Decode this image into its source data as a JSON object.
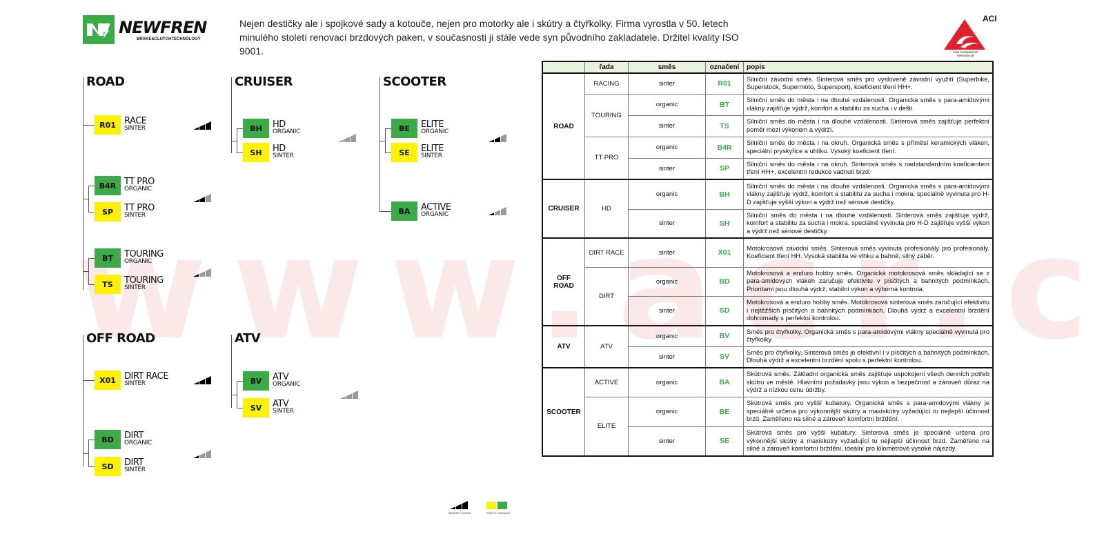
{
  "brand": {
    "name": "NEWFREN",
    "tagline": "BRAKE&CLUTCHTECHNOLOGY",
    "green": "#3daa48"
  },
  "intro": "Nejen destičky ale i spojkové sady a kotouče, nejen pro motorky ale i skútry a čtyřkolky. Firma vyrostla v 50. letech minulého století renovací brzdových paken, v současnosti ji stále vede syn původního zakladatele. Držitel kvality ISO 9001.",
  "aci_logo": {
    "name": "ACI",
    "subtitle": "Auto Components International",
    "color": "#e3202a"
  },
  "watermark": "www.acr.cz",
  "colors": {
    "sinter": "#fff200",
    "organic": "#3daa48",
    "code_text": "#3daa48",
    "header_bg": "#e9f2dd"
  },
  "trees": [
    {
      "title": "ROAD",
      "series": [
        {
          "braking_level": 3,
          "items": [
            {
              "code": "R01",
              "name": "RACE",
              "type": "SINTER"
            }
          ]
        },
        {
          "braking_level": 2,
          "items": [
            {
              "code": "B4R",
              "name": "TT PRO",
              "type": "ORGANIC"
            },
            {
              "code": "SP",
              "name": "TT PRO",
              "type": "SINTER"
            }
          ]
        },
        {
          "braking_level": 1,
          "items": [
            {
              "code": "BT",
              "name": "TOURING",
              "type": "ORGANIC"
            },
            {
              "code": "TS",
              "name": "TOURING",
              "type": "SINTER"
            }
          ]
        }
      ]
    },
    {
      "title": "CRUISER",
      "series": [
        {
          "braking_level": 0,
          "items": [
            {
              "code": "BH",
              "name": "HD",
              "type": "ORGANIC"
            },
            {
              "code": "SH",
              "name": "HD",
              "type": "SINTER"
            }
          ]
        }
      ]
    },
    {
      "title": "SCOOTER",
      "series": [
        {
          "braking_level": 2,
          "items": [
            {
              "code": "BE",
              "name": "ELITE",
              "type": "ORGANIC"
            },
            {
              "code": "SE",
              "name": "ELITE",
              "type": "SINTER"
            }
          ]
        },
        {
          "braking_level": 1,
          "items": [
            {
              "code": "BA",
              "name": "ACTIVE",
              "type": "ORGANIC"
            }
          ]
        }
      ]
    },
    {
      "title": "OFF ROAD",
      "series": [
        {
          "braking_level": 3,
          "items": [
            {
              "code": "X01",
              "name": "DIRT RACE",
              "type": "SINTER"
            }
          ]
        },
        {
          "braking_level": 1,
          "items": [
            {
              "code": "BD",
              "name": "DIRT",
              "type": "ORGANIC"
            },
            {
              "code": "SD",
              "name": "DIRT",
              "type": "SINTER"
            }
          ]
        }
      ]
    },
    {
      "title": "ATV",
      "series": [
        {
          "braking_level": 0,
          "items": [
            {
              "code": "BV",
              "name": "ATV",
              "type": "ORGANIC"
            },
            {
              "code": "SV",
              "name": "ATV",
              "type": "SINTER"
            }
          ]
        }
      ]
    }
  ],
  "legend": {
    "braking": "BRZDNÝ ÚČINEK",
    "sinter": "SINTER",
    "organic": "ORGANIC"
  },
  "table": {
    "headers": [
      "",
      "řada",
      "směs",
      "označení",
      "popis"
    ],
    "groups": [
      {
        "category": "ROAD",
        "lines": [
          {
            "series": "RACING",
            "rows": [
              {
                "mix": "sinter",
                "code": "R01",
                "desc": "Silniční závodní směs. Sinterová směs pro vysloveně závodní využití (Superbike, Superstock, Supermoto, Supersport), koeficient tření HH+."
              }
            ]
          },
          {
            "series": "TOURING",
            "rows": [
              {
                "mix": "organic",
                "code": "BT",
                "desc": "Silniční směs do města i na dlouhé vzdálenosti. Organická směs s para-amidovými vlákny zajišťuje výdrž, komfort a stabilitu za sucha i v dešti."
              },
              {
                "mix": "sinter",
                "code": "TS",
                "desc": "Silniční směs do města i na dlouhé vzdálenosti. Sinterová směs zajišťuje perfektní poměr mezi výkonem a výdrží."
              }
            ]
          },
          {
            "series": "TT PRO",
            "rows": [
              {
                "mix": "organic",
                "code": "B4R",
                "desc": "Silniční směs do města i na okruh. Organická směs s příměsí keramických vláken, speciální pryskyřice a uhlíku. Vysoký koeficient tření."
              },
              {
                "mix": "sinter",
                "code": "SP",
                "desc": "Silniční směs do města i na okruh. Sinterová směs s nadstandardním koeficientem tření HH+, excelentní redukce vadnutí brzd."
              }
            ]
          }
        ]
      },
      {
        "category": "CRUISER",
        "lines": [
          {
            "series": "HD",
            "rows": [
              {
                "mix": "organic",
                "code": "BH",
                "desc": "Silniční směs do města i na dlouhé vzdálenosti. Organická směs s para-amidovými vlákny zajišťuje výdrž, komfort a stabilitu za sucha i mokra, speciálně vyvinuta pro H-D zajišťuje vyšší výkon a výdrž než sériové destičky."
              },
              {
                "mix": "sinter",
                "code": "SH",
                "desc": "Silniční směs do města i na dlouhé vzdálenosti. Sinterová směs zajišťuje výdrž, komfort a stabilitu za sucha i mokra, speciálně vyvinuta pro H-D zajišťuje vyšší výkon a výdrž než sériové destičky."
              }
            ]
          }
        ]
      },
      {
        "category": "OFF ROAD",
        "lines": [
          {
            "series": "DIRT RACE",
            "rows": [
              {
                "mix": "sinter",
                "code": "X01",
                "desc": "Motokrosová závodní směs. Sinterová směs vyvinuta profesionály pro profesionály. Koeficient tření HH. Vysoká stabilita ve vlhku a bahně, silný záběr."
              }
            ]
          },
          {
            "series": "DIRT",
            "rows": [
              {
                "mix": "organic",
                "code": "BD",
                "desc": "Motokrosová a enduro hobby směs. Organická motokrosová směs skládající se z para-amidových vláken zaručuje efektivitu v písčitých a bahnitých podmínkách. Prioritami jsou dlouhá výdrž, stabilní výkon a výborná kontrola."
              },
              {
                "mix": "sinter",
                "code": "SD",
                "desc": "Motokrosová a enduro hobby směs. Motokrosová sinterová směs zaručující efektivitu i nejtěžších písčitých a bahnitých podmínkách. Dlouhá výdrž a excelentní brzdění dohromady s perfektní kontrolou."
              }
            ]
          }
        ]
      },
      {
        "category": "ATV",
        "lines": [
          {
            "series": "ATV",
            "rows": [
              {
                "mix": "organic",
                "code": "BV",
                "desc": "Směs pro čtyřkolky. Organická směs s para-amidovými vlákny speciálně vyvinutá pro čtyřkolky."
              },
              {
                "mix": "sinter",
                "code": "SV",
                "desc": "Směs pro čtyřkolky. Sinterová směs je efektivní i v písčitých a bahnitých podmínkách. Dlouhá výdrž a excelentní brzdění spolu s perfektní kontrolou."
              }
            ]
          }
        ]
      },
      {
        "category": "SCOOTER",
        "lines": [
          {
            "series": "ACTIVE",
            "rows": [
              {
                "mix": "organic",
                "code": "BA",
                "desc": "Skútrová směs. Základní organická směs zajišťuje uspokojení všech denních potřeb skútru ve městě. Hlavními požadavky jsou výkon a bezpečnost a zároveň důraz na výdrž a nízkou cenu údržby."
              }
            ]
          },
          {
            "series": "ELITE",
            "rows": [
              {
                "mix": "organic",
                "code": "BE",
                "desc": "Skútrová směs pro vyšší kubatury. Organická směs s para-amidovými vlákny je speciálně určena pro výkonnější skútry a maxiskútry vyžadující tu nejlepší účinnost brzd. Zaměřeno na silné a zároveň komfortní brždění."
              },
              {
                "mix": "sinter",
                "code": "SE",
                "desc": "Skútrová směs pro vyšší kubatury. Sinterová směs je speciálně určena pro výkonnější skútry a maxiskútry vyžadující tu nejlepší účinnost brzd. Zaměřeno na silné a zároveň komfortní brždění, ideální pro kilometrové vysoké nájezdy."
              }
            ]
          }
        ]
      }
    ]
  }
}
